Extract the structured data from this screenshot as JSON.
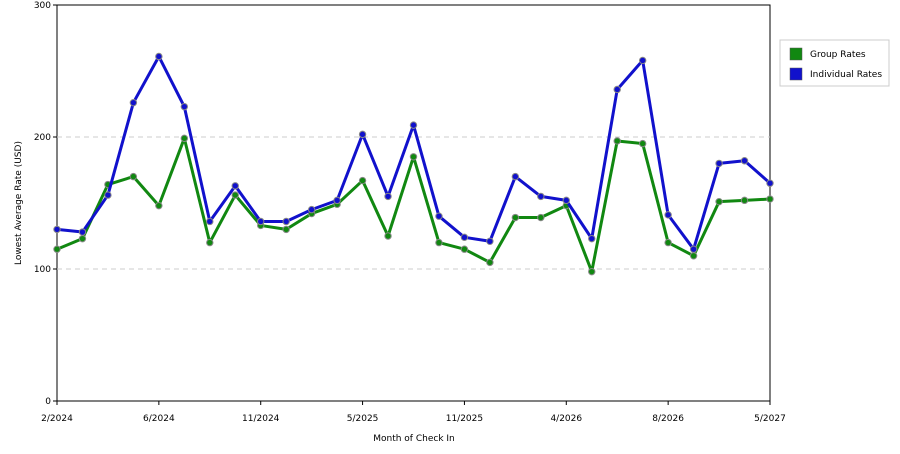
{
  "chart_data": {
    "type": "line",
    "x_label": "Month of Check In",
    "y_label": "Lowest Average Rate (USD)",
    "categories": [
      "2/2024",
      null,
      null,
      null,
      "6/2024",
      null,
      null,
      null,
      "11/2024",
      null,
      null,
      null,
      "5/2025",
      null,
      null,
      null,
      "11/2025",
      null,
      null,
      null,
      "4/2026",
      null,
      null,
      null,
      "8/2026",
      null,
      null,
      null,
      "5/2027"
    ],
    "series": [
      {
        "name": "Group Rates",
        "color": "#118811",
        "values": [
          115,
          123,
          164,
          170,
          148,
          199,
          120,
          156,
          133,
          130,
          142,
          149,
          167,
          125,
          185,
          120,
          115,
          105,
          139,
          139,
          148,
          98,
          197,
          195,
          120,
          110,
          151,
          152,
          153
        ]
      },
      {
        "name": "Individual Rates",
        "color": "#1111cc",
        "values": [
          130,
          128,
          156,
          226,
          261,
          223,
          136,
          163,
          136,
          136,
          145,
          152,
          202,
          155,
          209,
          140,
          124,
          121,
          170,
          155,
          152,
          123,
          236,
          258,
          141,
          115,
          180,
          182,
          165
        ]
      }
    ],
    "ylim": [
      0,
      300
    ],
    "yticks": [
      0,
      100,
      200,
      300
    ],
    "grid": true,
    "legend": "right"
  }
}
